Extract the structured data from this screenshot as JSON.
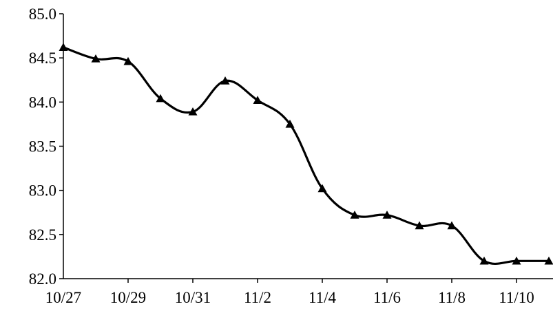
{
  "chart_data": {
    "type": "line",
    "title": "",
    "xlabel": "",
    "ylabel": "",
    "x": [
      "10/27",
      "10/28",
      "10/29",
      "10/30",
      "10/31",
      "11/1",
      "11/2",
      "11/3",
      "11/4",
      "11/5",
      "11/6",
      "11/7",
      "11/8",
      "11/9",
      "11/10",
      "11/11"
    ],
    "x_tick_labels": [
      "10/27",
      "10/29",
      "10/31",
      "11/2",
      "11/4",
      "11/6",
      "11/8",
      "11/10"
    ],
    "y_tick_labels": [
      "85.0",
      "84.5",
      "84.0",
      "83.5",
      "83.0",
      "82.5",
      "82.0"
    ],
    "ylim": [
      82.0,
      85.0
    ],
    "grid": false,
    "legend": "none",
    "series": [
      {
        "marker": "triangle",
        "color": "#000000",
        "smooth": true,
        "values": [
          84.62,
          84.49,
          84.46,
          84.04,
          83.89,
          84.24,
          84.02,
          83.75,
          83.02,
          82.72,
          82.72,
          82.6,
          82.6,
          82.2,
          82.2,
          82.2
        ]
      }
    ]
  }
}
